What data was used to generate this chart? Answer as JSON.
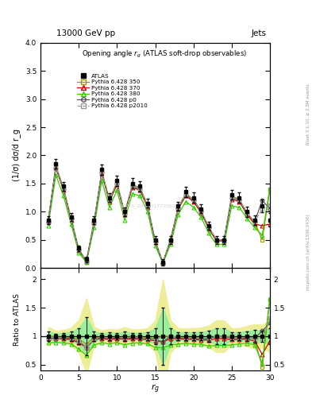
{
  "title_top": "13000 GeV pp",
  "title_right": "Jets",
  "plot_title": "Opening angle $r_g$ (ATLAS soft-drop observables)",
  "ylabel_main": "(1/σ) dσ/d r_g",
  "ylabel_ratio": "Ratio to ATLAS",
  "xlabel": "$r_g$",
  "right_label_top": "Rivet 3.1.10, ≥ 2.5M events",
  "right_label_bot": "mcplots.cern.ch [arXiv:1306.3436]",
  "watermark": "ATLAS_2019_I1772062",
  "ylim_main": [
    0,
    4
  ],
  "ylim_ratio": [
    0.4,
    2.2
  ],
  "xlim": [
    0,
    30
  ],
  "x": [
    1,
    2,
    3,
    4,
    5,
    6,
    7,
    8,
    9,
    10,
    11,
    12,
    13,
    14,
    15,
    16,
    17,
    18,
    19,
    20,
    21,
    22,
    23,
    24,
    25,
    26,
    27,
    28,
    29,
    30
  ],
  "atlas_y": [
    0.85,
    1.85,
    1.45,
    0.9,
    0.35,
    0.15,
    0.85,
    1.75,
    1.25,
    1.55,
    1.0,
    1.5,
    1.45,
    1.15,
    0.5,
    0.1,
    0.5,
    1.1,
    1.35,
    1.25,
    1.05,
    0.75,
    0.5,
    0.5,
    1.3,
    1.25,
    1.0,
    0.85,
    1.1,
    0.85
  ],
  "atlas_yerr": [
    0.07,
    0.09,
    0.08,
    0.07,
    0.05,
    0.05,
    0.07,
    0.09,
    0.08,
    0.09,
    0.08,
    0.09,
    0.09,
    0.08,
    0.07,
    0.05,
    0.07,
    0.08,
    0.09,
    0.09,
    0.08,
    0.07,
    0.07,
    0.07,
    0.09,
    0.09,
    0.09,
    0.09,
    0.11,
    0.12
  ],
  "p350_y": [
    0.85,
    1.82,
    1.42,
    0.88,
    0.33,
    0.13,
    0.83,
    1.72,
    1.22,
    1.52,
    0.98,
    1.48,
    1.43,
    1.12,
    0.48,
    0.1,
    0.5,
    1.08,
    1.32,
    1.22,
    1.02,
    0.72,
    0.5,
    0.5,
    1.28,
    1.22,
    0.98,
    0.82,
    0.5,
    1.4
  ],
  "p370_y": [
    0.82,
    1.78,
    1.38,
    0.85,
    0.31,
    0.12,
    0.8,
    1.68,
    1.18,
    1.48,
    0.95,
    1.43,
    1.38,
    1.08,
    0.46,
    0.09,
    0.48,
    1.05,
    1.28,
    1.18,
    0.98,
    0.7,
    0.48,
    0.48,
    1.22,
    1.18,
    0.95,
    0.78,
    0.75,
    0.78
  ],
  "p380_y": [
    0.75,
    1.65,
    1.28,
    0.78,
    0.27,
    0.1,
    0.72,
    1.55,
    1.08,
    1.38,
    0.85,
    1.32,
    1.28,
    1.0,
    0.4,
    0.08,
    0.42,
    0.95,
    1.18,
    1.08,
    0.9,
    0.62,
    0.42,
    0.42,
    1.1,
    1.08,
    0.88,
    0.72,
    0.58,
    1.42
  ],
  "pp0_y": [
    0.82,
    1.78,
    1.4,
    0.87,
    0.32,
    0.12,
    0.8,
    1.7,
    1.2,
    1.5,
    0.96,
    1.45,
    1.4,
    1.1,
    0.47,
    0.09,
    0.5,
    1.06,
    1.3,
    1.2,
    1.0,
    0.72,
    0.5,
    0.5,
    1.25,
    1.2,
    0.97,
    0.82,
    1.2,
    1.05
  ],
  "pp2010_y": [
    0.83,
    1.8,
    1.41,
    0.87,
    0.32,
    0.12,
    0.81,
    1.71,
    1.21,
    1.51,
    0.97,
    1.46,
    1.41,
    1.11,
    0.47,
    0.1,
    0.5,
    1.07,
    1.31,
    1.21,
    1.01,
    0.73,
    0.5,
    0.5,
    1.26,
    1.21,
    0.98,
    0.82,
    1.05,
    1.12
  ],
  "atlas_color": "#000000",
  "p350_color": "#999900",
  "p370_color": "#cc0000",
  "p380_color": "#33cc00",
  "pp0_color": "#555555",
  "pp2010_color": "#999999",
  "band_yellow": "#eeee99",
  "band_green": "#99ee99"
}
